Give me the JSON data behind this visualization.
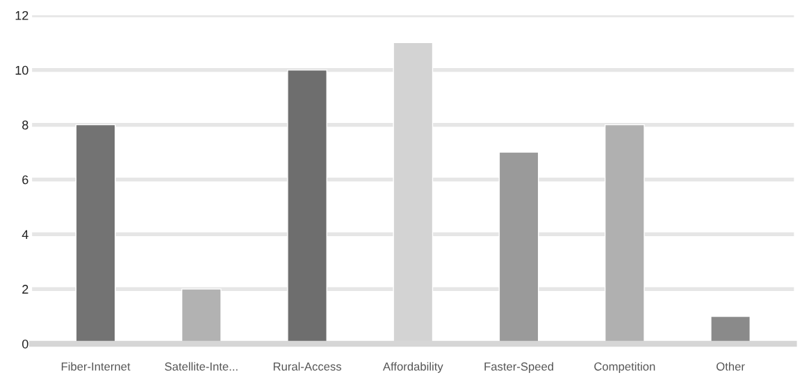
{
  "chart_data": {
    "type": "bar",
    "categories": [
      "Fiber-Internet",
      "Satellite-Inte...",
      "Rural-Access",
      "Affordability",
      "Faster-Speed",
      "Competition",
      "Other"
    ],
    "values": [
      8,
      2,
      10,
      11,
      7,
      8,
      1
    ],
    "colors": [
      "#737373",
      "#b2b2b2",
      "#6e6e6e",
      "#d3d3d3",
      "#9a9a9a",
      "#b0b0b0",
      "#8a8a8a"
    ],
    "ylim": [
      0,
      12
    ],
    "yticks": [
      0,
      2,
      4,
      6,
      8,
      10,
      12
    ],
    "grid": "y"
  }
}
